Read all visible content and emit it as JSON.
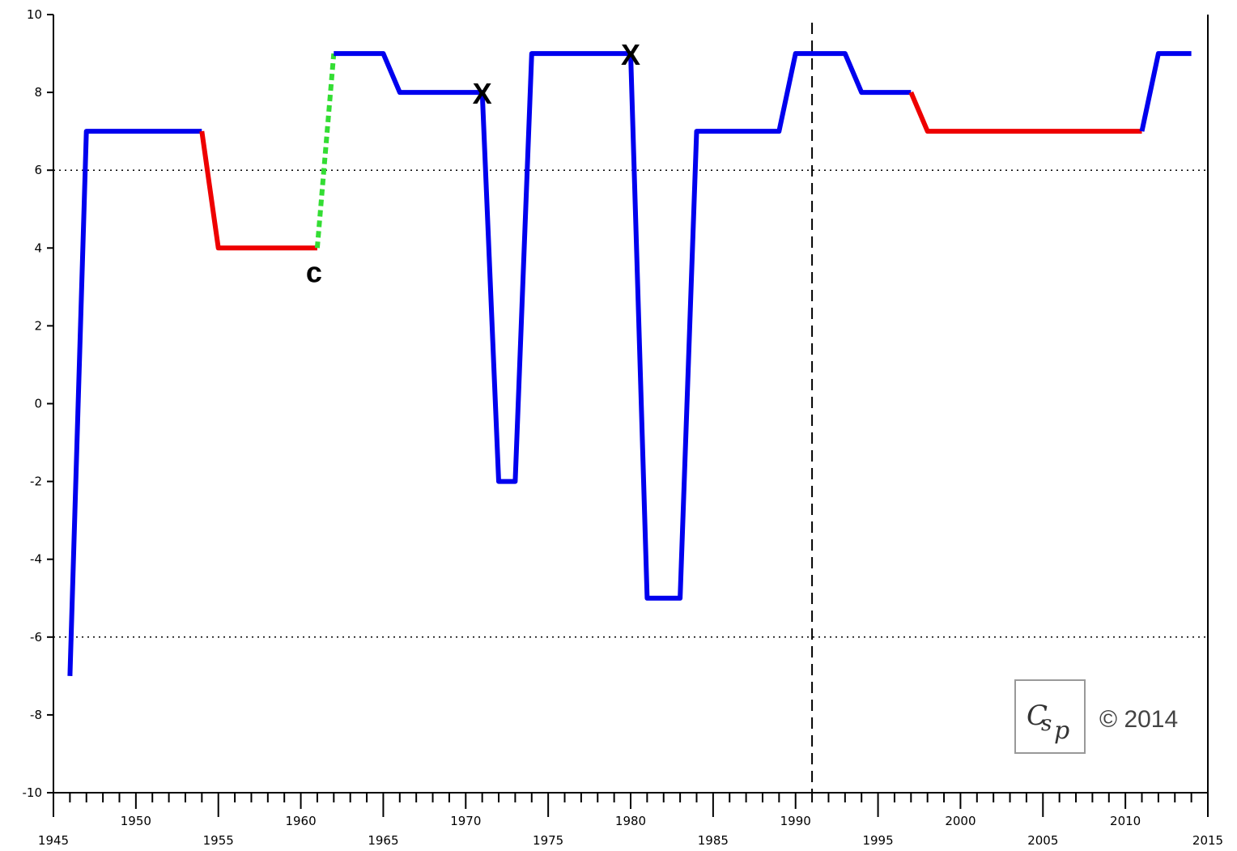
{
  "chart_data": {
    "type": "line",
    "title": "",
    "xlabel": "",
    "ylabel": "",
    "xlim": [
      1945,
      2015
    ],
    "ylim": [
      -10,
      10
    ],
    "y_ticks": [
      -10,
      -8,
      -6,
      -4,
      -2,
      0,
      2,
      4,
      6,
      8,
      10
    ],
    "x_ticks_low": [
      1945,
      1955,
      1965,
      1975,
      1985,
      1995,
      2005,
      2015
    ],
    "x_ticks_high": [
      1950,
      1960,
      1970,
      1980,
      1990,
      2000,
      2010
    ],
    "grid": false,
    "reference_lines": [
      {
        "orientation": "horizontal",
        "value": 6,
        "style": "dotted"
      },
      {
        "orientation": "horizontal",
        "value": -6,
        "style": "dotted"
      },
      {
        "orientation": "vertical",
        "value": 1991,
        "style": "dashed"
      }
    ],
    "segments": [
      {
        "color": "#0000ee",
        "style": "solid",
        "points": [
          [
            1946,
            -7
          ],
          [
            1947,
            7
          ],
          [
            1954,
            7
          ]
        ]
      },
      {
        "color": "#ee0000",
        "style": "solid",
        "points": [
          [
            1954,
            7
          ],
          [
            1955,
            4
          ],
          [
            1961,
            4
          ]
        ]
      },
      {
        "color": "#33dd33",
        "style": "dashed",
        "points": [
          [
            1961,
            4
          ],
          [
            1962,
            9
          ]
        ]
      },
      {
        "color": "#0000ee",
        "style": "solid",
        "points": [
          [
            1962,
            9
          ],
          [
            1965,
            9
          ],
          [
            1966,
            8
          ],
          [
            1971,
            8
          ],
          [
            1972,
            -2
          ],
          [
            1973,
            -2
          ],
          [
            1974,
            9
          ],
          [
            1980,
            9
          ],
          [
            1981,
            -5
          ],
          [
            1983,
            -5
          ],
          [
            1984,
            7
          ],
          [
            1989,
            7
          ],
          [
            1990,
            9
          ],
          [
            1993,
            9
          ],
          [
            1994,
            8
          ],
          [
            1997,
            8
          ]
        ]
      },
      {
        "color": "#ee0000",
        "style": "solid",
        "points": [
          [
            1997,
            8
          ],
          [
            1998,
            7
          ],
          [
            2011,
            7
          ]
        ]
      },
      {
        "color": "#0000ee",
        "style": "solid",
        "points": [
          [
            2011,
            7
          ],
          [
            2012,
            9
          ],
          [
            2014,
            9
          ]
        ]
      }
    ],
    "annotations": [
      {
        "text": "c",
        "x": 1961,
        "y": 4
      },
      {
        "text": "X",
        "x": 1971,
        "y": 8
      },
      {
        "text": "X",
        "x": 1980,
        "y": 9
      }
    ],
    "logo_text": "Csp",
    "copyright": "© 2014"
  }
}
